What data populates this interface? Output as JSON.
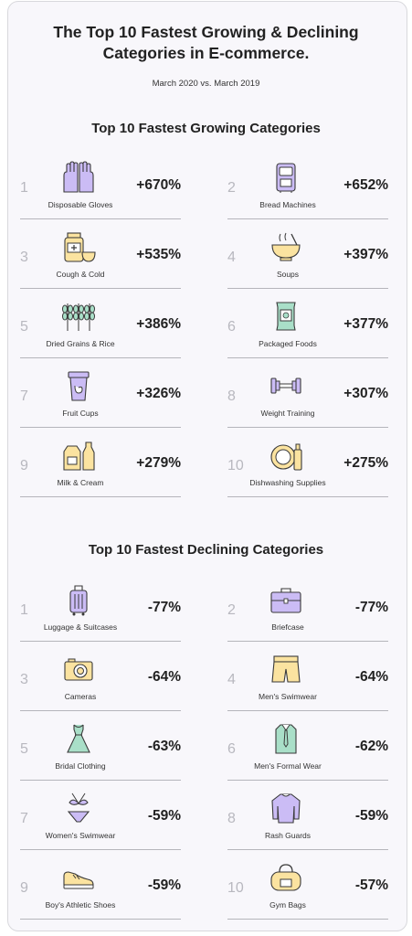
{
  "title_line1": "The Top 10 Fastest Growing & Declining",
  "title_line2": "Categories in E-commerce.",
  "subtitle": "March 2020 vs. March 2019",
  "colors": {
    "accent_purple": "#cbbcf5",
    "accent_yellow": "#fbe3a0",
    "accent_green": "#a9dfc8",
    "outline": "#3a3a3a",
    "rank_gray": "#b8b8bf"
  },
  "growing": {
    "title": "Top 10 Fastest Growing Categories",
    "items": [
      {
        "rank": "1",
        "label": "Disposable Gloves",
        "value": "+670%",
        "icon": "gloves-icon"
      },
      {
        "rank": "2",
        "label": "Bread Machines",
        "value": "+652%",
        "icon": "bread-machine-icon"
      },
      {
        "rank": "3",
        "label": "Cough & Cold",
        "value": "+535%",
        "icon": "medicine-icon"
      },
      {
        "rank": "4",
        "label": "Soups",
        "value": "+397%",
        "icon": "soup-bowl-icon"
      },
      {
        "rank": "5",
        "label": "Dried Grains & Rice",
        "value": "+386%",
        "icon": "grain-icon"
      },
      {
        "rank": "6",
        "label": "Packaged Foods",
        "value": "+377%",
        "icon": "packaged-food-icon"
      },
      {
        "rank": "7",
        "label": "Fruit Cups",
        "value": "+326%",
        "icon": "fruit-cup-icon"
      },
      {
        "rank": "8",
        "label": "Weight Training",
        "value": "+307%",
        "icon": "dumbbell-icon"
      },
      {
        "rank": "9",
        "label": "Milk & Cream",
        "value": "+279%",
        "icon": "milk-icon"
      },
      {
        "rank": "10",
        "label": "Dishwashing Supplies",
        "value": "+275%",
        "icon": "dish-soap-icon"
      }
    ]
  },
  "declining": {
    "title": "Top 10 Fastest Declining Categories",
    "items": [
      {
        "rank": "1",
        "label": "Luggage & Suitcases",
        "value": "-77%",
        "icon": "luggage-icon"
      },
      {
        "rank": "2",
        "label": "Briefcase",
        "value": "-77%",
        "icon": "briefcase-icon"
      },
      {
        "rank": "3",
        "label": "Cameras",
        "value": "-64%",
        "icon": "camera-icon"
      },
      {
        "rank": "4",
        "label": "Men's Swimwear",
        "value": "-64%",
        "icon": "swim-trunks-icon"
      },
      {
        "rank": "5",
        "label": "Bridal Clothing",
        "value": "-63%",
        "icon": "dress-icon"
      },
      {
        "rank": "6",
        "label": "Men's Formal Wear",
        "value": "-62%",
        "icon": "shirt-tie-icon"
      },
      {
        "rank": "7",
        "label": "Women's Swimwear",
        "value": "-59%",
        "icon": "bikini-icon"
      },
      {
        "rank": "8",
        "label": "Rash Guards",
        "value": "-59%",
        "icon": "rash-guard-icon"
      },
      {
        "rank": "9",
        "label": "Boy's Athletic Shoes",
        "value": "-59%",
        "icon": "shoe-icon"
      },
      {
        "rank": "10",
        "label": "Gym Bags",
        "value": "-57%",
        "icon": "gym-bag-icon"
      }
    ]
  }
}
